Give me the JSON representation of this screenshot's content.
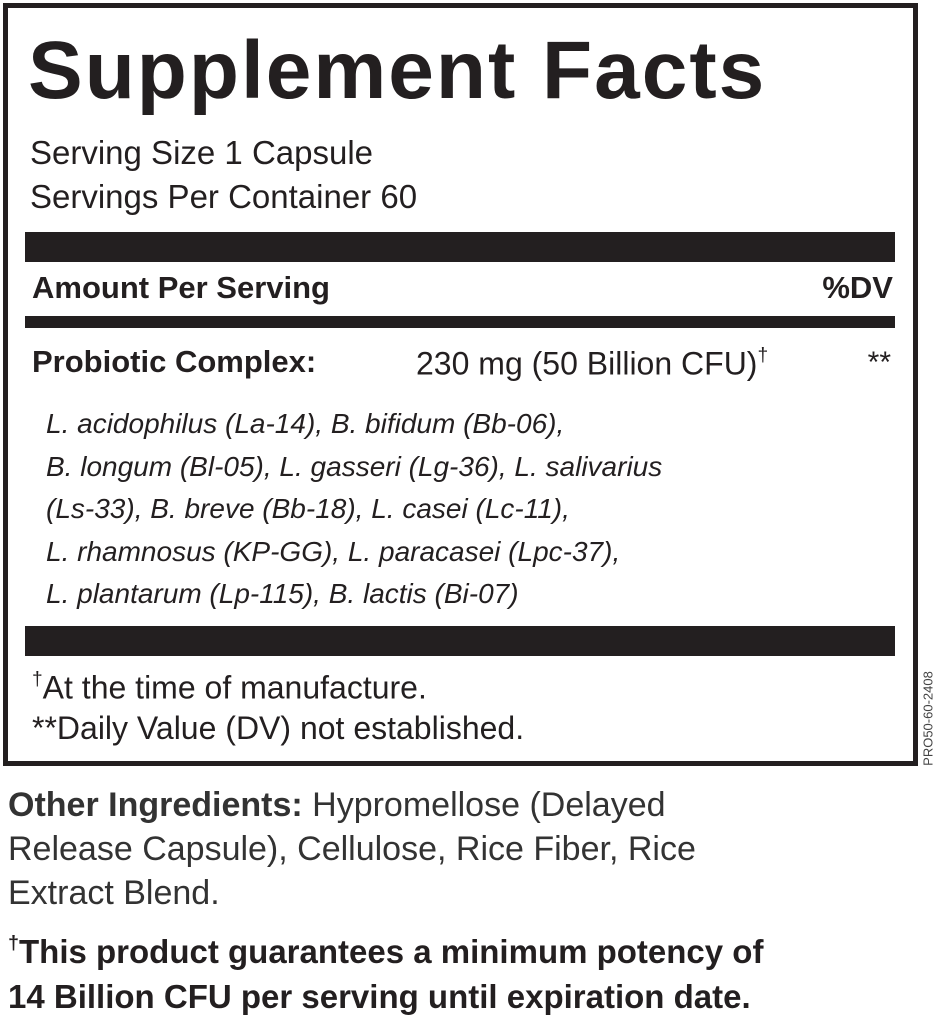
{
  "title": "Supplement Facts",
  "serving_size": "Serving Size 1 Capsule",
  "servings_per_container": "Servings Per Container 60",
  "table_header": {
    "amount": "Amount Per Serving",
    "dv": "%DV"
  },
  "ingredient": {
    "name": "Probiotic Complex:",
    "amount": "230 mg (50 Billion CFU)",
    "dagger": "†",
    "dv": "**"
  },
  "strains": [
    "L. acidophilus (La-14), B. bifidum (Bb-06),",
    "B. longum (Bl-05), L. gasseri (Lg-36), L. salivarius",
    "(Ls-33), B. breve (Bb-18), L. casei (Lc-11),",
    "L. rhamnosus (KP-GG), L. paracasei (Lpc-37),",
    "L. plantarum (Lp-115), B. lactis (Bi-07)"
  ],
  "footnotes": [
    {
      "mark": "†",
      "text": "At the time of manufacture."
    },
    {
      "mark": "**",
      "text": "Daily Value (DV) not established."
    }
  ],
  "side_code": "PRO50-60-2408",
  "other_ingredients": {
    "label": "Other Ingredients:",
    "lines": [
      " Hypromellose (Delayed",
      "Release Capsule), Cellulose, Rice Fiber, Rice",
      "Extract Blend."
    ]
  },
  "guarantee": {
    "mark": "†",
    "lines": [
      "This product guarantees a minimum potency of",
      "14 Billion CFU per serving until expiration date."
    ]
  }
}
